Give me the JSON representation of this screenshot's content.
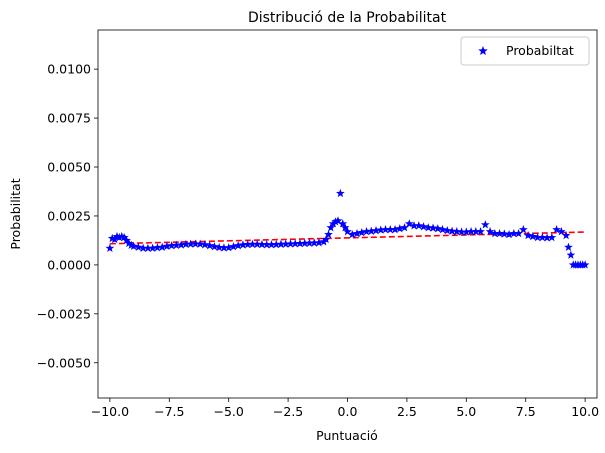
{
  "chart_data": {
    "type": "scatter",
    "title": "Distribució de la Probabilitat",
    "xlabel": "Puntuació",
    "ylabel": "Probabilitat",
    "xlim": [
      -10.5,
      10.5
    ],
    "ylim": [
      -0.0068,
      0.012
    ],
    "xticks": [
      -10.0,
      -7.5,
      -5.0,
      -2.5,
      0.0,
      2.5,
      5.0,
      7.5,
      10.0
    ],
    "xtick_labels": [
      "−10.0",
      "−7.5",
      "−5.0",
      "−2.5",
      "0.0",
      "2.5",
      "5.0",
      "7.5",
      "10.0"
    ],
    "yticks": [
      -0.005,
      -0.0025,
      0.0,
      0.0025,
      0.005,
      0.0075,
      0.01
    ],
    "ytick_labels": [
      "−0.0050",
      "−0.0025",
      "0.0000",
      "0.0025",
      "0.0050",
      "0.0075",
      "0.0100"
    ],
    "grid": false,
    "legend": {
      "position": "top-right",
      "entries": [
        "Probabiltat"
      ]
    },
    "series": [
      {
        "name": "Probabiltat",
        "marker": "star",
        "color": "#0000ff",
        "points": [
          [
            -10.0,
            0.00085
          ],
          [
            -9.9,
            0.00135
          ],
          [
            -9.8,
            0.0013
          ],
          [
            -9.7,
            0.00145
          ],
          [
            -9.6,
            0.0014
          ],
          [
            -9.5,
            0.00145
          ],
          [
            -9.4,
            0.0014
          ],
          [
            -9.3,
            0.00125
          ],
          [
            -9.2,
            0.0011
          ],
          [
            -9.1,
            0.001
          ],
          [
            -9.0,
            0.00095
          ],
          [
            -8.8,
            0.0009
          ],
          [
            -8.6,
            0.00085
          ],
          [
            -8.4,
            0.00085
          ],
          [
            -8.2,
            0.00085
          ],
          [
            -8.0,
            0.00088
          ],
          [
            -7.8,
            0.0009
          ],
          [
            -7.6,
            0.00095
          ],
          [
            -7.4,
            0.00098
          ],
          [
            -7.2,
            0.001
          ],
          [
            -7.0,
            0.00102
          ],
          [
            -6.8,
            0.00105
          ],
          [
            -6.6,
            0.00106
          ],
          [
            -6.4,
            0.00107
          ],
          [
            -6.2,
            0.00106
          ],
          [
            -6.0,
            0.00103
          ],
          [
            -5.8,
            0.00098
          ],
          [
            -5.6,
            0.00093
          ],
          [
            -5.4,
            0.00089
          ],
          [
            -5.2,
            0.00087
          ],
          [
            -5.0,
            0.00088
          ],
          [
            -4.8,
            0.00093
          ],
          [
            -4.6,
            0.00098
          ],
          [
            -4.4,
            0.00102
          ],
          [
            -4.2,
            0.00104
          ],
          [
            -4.0,
            0.00105
          ],
          [
            -3.8,
            0.00105
          ],
          [
            -3.6,
            0.00104
          ],
          [
            -3.4,
            0.00103
          ],
          [
            -3.2,
            0.00103
          ],
          [
            -3.0,
            0.00104
          ],
          [
            -2.8,
            0.00105
          ],
          [
            -2.6,
            0.00106
          ],
          [
            -2.4,
            0.00107
          ],
          [
            -2.2,
            0.00108
          ],
          [
            -2.0,
            0.00109
          ],
          [
            -1.8,
            0.0011
          ],
          [
            -1.6,
            0.00111
          ],
          [
            -1.4,
            0.00112
          ],
          [
            -1.2,
            0.00113
          ],
          [
            -1.0,
            0.00118
          ],
          [
            -0.9,
            0.0013
          ],
          [
            -0.8,
            0.00155
          ],
          [
            -0.7,
            0.0019
          ],
          [
            -0.6,
            0.0021
          ],
          [
            -0.5,
            0.0022
          ],
          [
            -0.4,
            0.00225
          ],
          [
            -0.3,
            0.00365
          ],
          [
            -0.2,
            0.0021
          ],
          [
            -0.1,
            0.0019
          ],
          [
            0.0,
            0.0017
          ],
          [
            0.2,
            0.00155
          ],
          [
            0.4,
            0.0016
          ],
          [
            0.6,
            0.00165
          ],
          [
            0.8,
            0.0017
          ],
          [
            1.0,
            0.00172
          ],
          [
            1.2,
            0.00175
          ],
          [
            1.4,
            0.00178
          ],
          [
            1.6,
            0.0018
          ],
          [
            1.8,
            0.0018
          ],
          [
            2.0,
            0.0018
          ],
          [
            2.2,
            0.00185
          ],
          [
            2.4,
            0.0019
          ],
          [
            2.6,
            0.0021
          ],
          [
            2.8,
            0.002
          ],
          [
            3.0,
            0.002
          ],
          [
            3.2,
            0.00195
          ],
          [
            3.4,
            0.0019
          ],
          [
            3.6,
            0.00188
          ],
          [
            3.8,
            0.00185
          ],
          [
            4.0,
            0.0018
          ],
          [
            4.2,
            0.00175
          ],
          [
            4.4,
            0.00172
          ],
          [
            4.6,
            0.0017
          ],
          [
            4.8,
            0.00168
          ],
          [
            5.0,
            0.00168
          ],
          [
            5.2,
            0.0017
          ],
          [
            5.4,
            0.0017
          ],
          [
            5.6,
            0.0017
          ],
          [
            5.8,
            0.00205
          ],
          [
            6.0,
            0.0017
          ],
          [
            6.2,
            0.0016
          ],
          [
            6.4,
            0.0016
          ],
          [
            6.6,
            0.00158
          ],
          [
            6.8,
            0.00155
          ],
          [
            7.0,
            0.0016
          ],
          [
            7.2,
            0.0016
          ],
          [
            7.4,
            0.0018
          ],
          [
            7.6,
            0.0015
          ],
          [
            7.8,
            0.00145
          ],
          [
            8.0,
            0.0014
          ],
          [
            8.2,
            0.0014
          ],
          [
            8.4,
            0.00138
          ],
          [
            8.6,
            0.0014
          ],
          [
            8.8,
            0.0018
          ],
          [
            9.0,
            0.0017
          ],
          [
            9.2,
            0.0015
          ],
          [
            9.3,
            0.0009
          ],
          [
            9.4,
            0.0005
          ],
          [
            9.5,
            0.0
          ],
          [
            9.6,
            0.0
          ],
          [
            9.7,
            0.0
          ],
          [
            9.8,
            0.0
          ],
          [
            9.9,
            0.0
          ],
          [
            10.0,
            0.0
          ]
        ]
      },
      {
        "marker": "none",
        "line": "dashed",
        "color": "#ff0000",
        "x": [
          -10.0,
          10.0
        ],
        "y": [
          0.00108,
          0.00168
        ]
      }
    ]
  }
}
